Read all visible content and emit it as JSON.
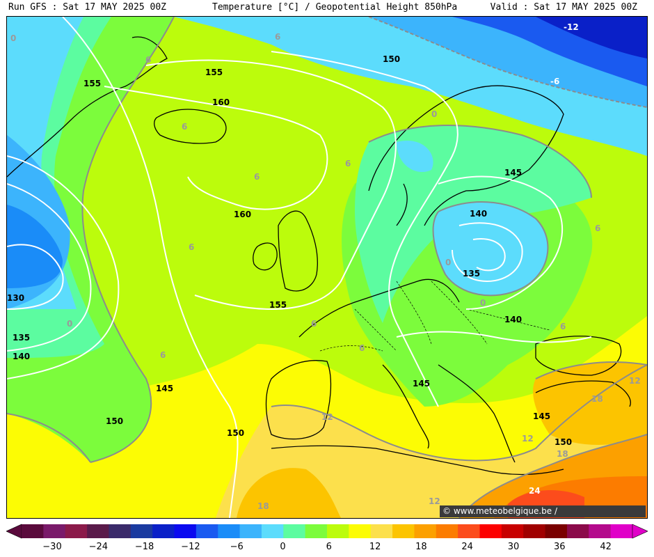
{
  "header": {
    "run": "Run GFS : Sat 17 MAY 2025 00Z",
    "title": "Temperature [°C] / Geopotential Height 850hPa",
    "valid": "Valid : Sat 17 MAY 2025 00Z"
  },
  "credit": "© www.meteobelgique.be / www.meteobelgie.be",
  "scale": {
    "ticks": [
      "−30",
      "−24",
      "−18",
      "−12",
      "−6",
      "0",
      "6",
      "12",
      "18",
      "24",
      "30",
      "36",
      "42"
    ],
    "colors": [
      "#5a0a3c",
      "#7a1a6a",
      "#8b1a4a",
      "#5a1a4a",
      "#3a2a6a",
      "#1a3aa0",
      "#0a20c8",
      "#0a0af0",
      "#1a5af0",
      "#1a8cf8",
      "#3cb4fc",
      "#5cdcfc",
      "#5cfca0",
      "#7cfc3c",
      "#bcfc0c",
      "#fcfc04",
      "#fce04c",
      "#fcc400",
      "#fca000",
      "#fc7c00",
      "#fc4c1c",
      "#fc0000",
      "#c80000",
      "#a00000",
      "#7a0000",
      "#8b0a4a",
      "#b40a8c",
      "#e000c8"
    ]
  },
  "height_labels": [
    "150",
    "155",
    "160",
    "155",
    "145",
    "140",
    "135",
    "140",
    "160",
    "155",
    "130",
    "135",
    "140",
    "145",
    "150",
    "150",
    "145",
    "145",
    "150"
  ],
  "temp_labels": [
    "0",
    "6",
    "6",
    "-12",
    "-6",
    "0",
    "6",
    "6",
    "6",
    "6",
    "0",
    "0",
    "6",
    "6",
    "6",
    "6",
    "6",
    "12",
    "12",
    "18",
    "18",
    "12",
    "24",
    "18",
    "12",
    "0"
  ]
}
